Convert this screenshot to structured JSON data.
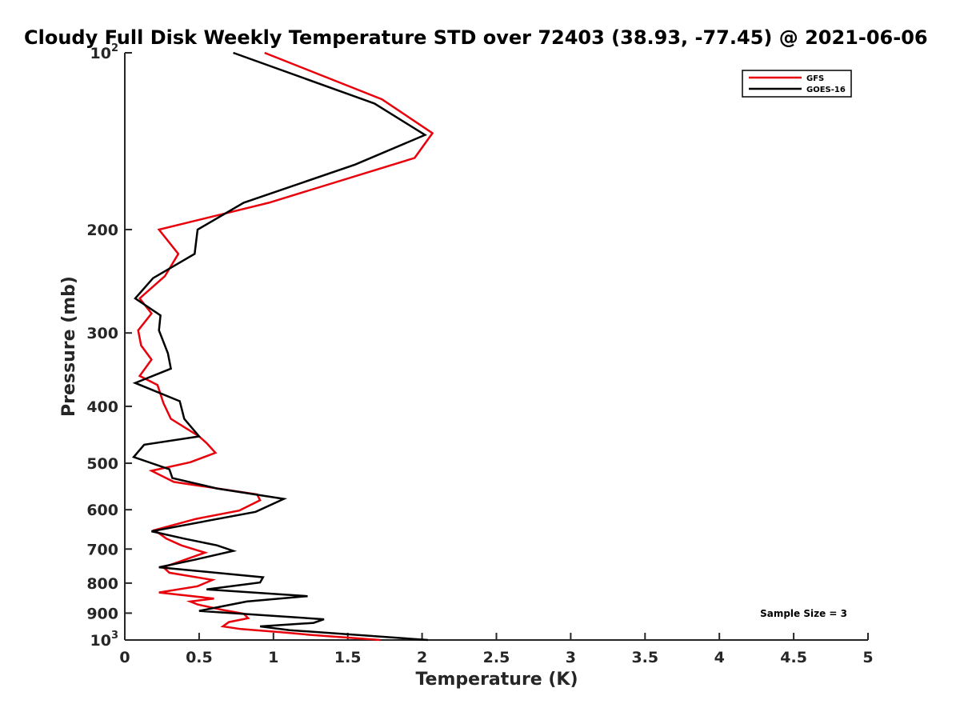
{
  "chart_data": {
    "type": "line",
    "title": "Cloudy Full Disk Weekly Temperature STD over 72403 (38.93, -77.45) @ 2021-06-06",
    "xlabel": "Temperature (K)",
    "ylabel": "Pressure (mb)",
    "xlim": [
      0,
      5
    ],
    "ylim": [
      100,
      1000
    ],
    "y_scale": "log",
    "y_reversed": true,
    "x_ticks": [
      "0",
      "0.5",
      "1",
      "1.5",
      "2",
      "2.5",
      "3",
      "3.5",
      "4",
      "4.5",
      "5"
    ],
    "y_ticks": [
      {
        "value": 100,
        "base": "10",
        "exp": "2"
      },
      {
        "value": 200,
        "label": "200"
      },
      {
        "value": 300,
        "label": "300"
      },
      {
        "value": 400,
        "label": "400"
      },
      {
        "value": 500,
        "label": "500"
      },
      {
        "value": 600,
        "label": "600"
      },
      {
        "value": 700,
        "label": "700"
      },
      {
        "value": 800,
        "label": "800"
      },
      {
        "value": 900,
        "label": "900"
      },
      {
        "value": 1000,
        "base": "10",
        "exp": "3"
      }
    ],
    "grid": false,
    "legend_position": "top-right",
    "annotation": "Sample Size = 3",
    "series": [
      {
        "name": "GFS",
        "color": "#e8000b",
        "points": [
          [
            0.94,
            100
          ],
          [
            1.73,
            120
          ],
          [
            2.07,
            137
          ],
          [
            1.95,
            151
          ],
          [
            0.97,
            180
          ],
          [
            0.23,
            200
          ],
          [
            0.36,
            220
          ],
          [
            0.27,
            240
          ],
          [
            0.1,
            262
          ],
          [
            0.18,
            278
          ],
          [
            0.09,
            297
          ],
          [
            0.11,
            315
          ],
          [
            0.18,
            333
          ],
          [
            0.1,
            355
          ],
          [
            0.22,
            368
          ],
          [
            0.26,
            395
          ],
          [
            0.31,
            420
          ],
          [
            0.5,
            450
          ],
          [
            0.55,
            462
          ],
          [
            0.61,
            480
          ],
          [
            0.44,
            498
          ],
          [
            0.18,
            515
          ],
          [
            0.33,
            538
          ],
          [
            0.89,
            565
          ],
          [
            0.91,
            578
          ],
          [
            0.77,
            602
          ],
          [
            0.48,
            622
          ],
          [
            0.2,
            650
          ],
          [
            0.28,
            672
          ],
          [
            0.38,
            690
          ],
          [
            0.54,
            710
          ],
          [
            0.26,
            752
          ],
          [
            0.3,
            768
          ],
          [
            0.59,
            790
          ],
          [
            0.49,
            810
          ],
          [
            0.23,
            830
          ],
          [
            0.6,
            850
          ],
          [
            0.44,
            860
          ],
          [
            0.49,
            870
          ],
          [
            0.65,
            888
          ],
          [
            0.8,
            902
          ],
          [
            0.83,
            918
          ],
          [
            0.7,
            932
          ],
          [
            0.66,
            948
          ],
          [
            0.78,
            958
          ],
          [
            1.05,
            970
          ],
          [
            1.25,
            980
          ],
          [
            1.72,
            1000
          ]
        ]
      },
      {
        "name": "GOES-16",
        "color": "#000000",
        "points": [
          [
            0.73,
            100
          ],
          [
            1.68,
            122
          ],
          [
            2.02,
            138
          ],
          [
            1.55,
            155
          ],
          [
            0.8,
            180
          ],
          [
            0.49,
            200
          ],
          [
            0.47,
            220
          ],
          [
            0.19,
            242
          ],
          [
            0.07,
            262
          ],
          [
            0.24,
            280
          ],
          [
            0.23,
            297
          ],
          [
            0.29,
            325
          ],
          [
            0.31,
            345
          ],
          [
            0.07,
            365
          ],
          [
            0.37,
            392
          ],
          [
            0.4,
            420
          ],
          [
            0.5,
            450
          ],
          [
            0.13,
            465
          ],
          [
            0.06,
            488
          ],
          [
            0.3,
            512
          ],
          [
            0.32,
            530
          ],
          [
            0.62,
            552
          ],
          [
            1.07,
            575
          ],
          [
            0.88,
            605
          ],
          [
            0.18,
            653
          ],
          [
            0.4,
            672
          ],
          [
            0.62,
            690
          ],
          [
            0.73,
            705
          ],
          [
            0.47,
            730
          ],
          [
            0.23,
            752
          ],
          [
            0.93,
            782
          ],
          [
            0.91,
            798
          ],
          [
            0.55,
            820
          ],
          [
            1.23,
            842
          ],
          [
            0.82,
            860
          ],
          [
            0.64,
            878
          ],
          [
            0.5,
            892
          ],
          [
            1.34,
            922
          ],
          [
            1.27,
            935
          ],
          [
            0.91,
            948
          ],
          [
            1.11,
            962
          ],
          [
            2.04,
            1000
          ]
        ]
      }
    ]
  }
}
